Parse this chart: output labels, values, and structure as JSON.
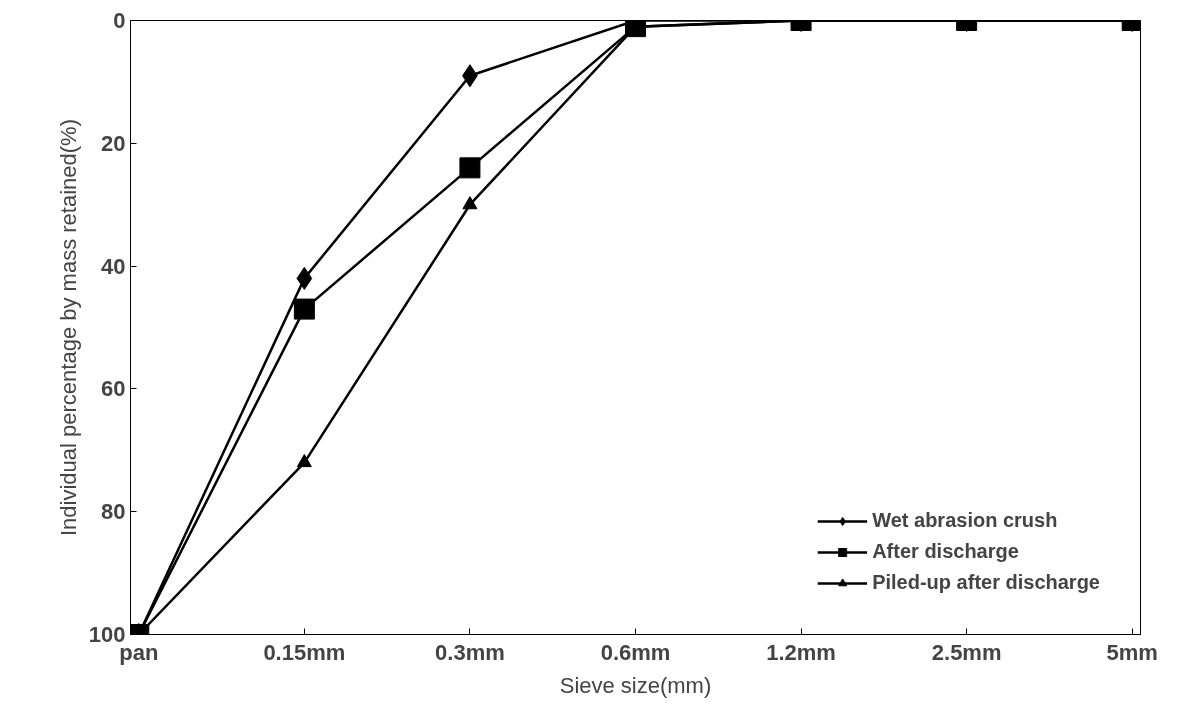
{
  "chart_data": {
    "type": "line",
    "xlabel": "Sieve size(mm)",
    "ylabel": "Individual percentage by mass retained(%)",
    "categories": [
      "pan",
      "0.15mm",
      "0.3mm",
      "0.6mm",
      "1.2mm",
      "2.5mm",
      "5mm"
    ],
    "ylim": [
      100,
      0
    ],
    "yticks": [
      0,
      20,
      40,
      60,
      80,
      100
    ],
    "grid": false,
    "legend": "bottom right",
    "series": [
      {
        "name": "Wet abrasion crush",
        "color": "#000000",
        "marker": "diamond",
        "values": [
          100,
          42,
          9,
          0,
          0,
          0,
          0
        ]
      },
      {
        "name": "After discharge",
        "color": "#000000",
        "marker": "square",
        "values": [
          100,
          47,
          24,
          1,
          0,
          0,
          0
        ]
      },
      {
        "name": "Piled-up after discharge",
        "color": "#000000",
        "marker": "triangle",
        "values": [
          100,
          72,
          30,
          1,
          0,
          0,
          0
        ]
      }
    ]
  }
}
